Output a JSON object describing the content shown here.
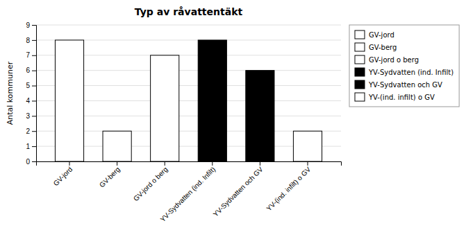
{
  "chart_data": {
    "type": "bar",
    "title": "Typ av råvattentäkt",
    "ylabel": "Antal kommuner",
    "categories": [
      "GV-jord",
      "GV-berg",
      "GV-jord o berg",
      "YV-Sydvatten (ind. Infilt)",
      "YV-Sydvatten och GV",
      "YV-(ind. infilt) o GV"
    ],
    "values": [
      8,
      2,
      7,
      8,
      6,
      2
    ],
    "colors": [
      "white",
      "white",
      "white",
      "black",
      "black",
      "white"
    ],
    "ylim": [
      0,
      9
    ],
    "yticks": [
      0,
      1,
      2,
      3,
      4,
      5,
      6,
      7,
      8,
      9
    ],
    "grid": true,
    "legend": "right"
  }
}
